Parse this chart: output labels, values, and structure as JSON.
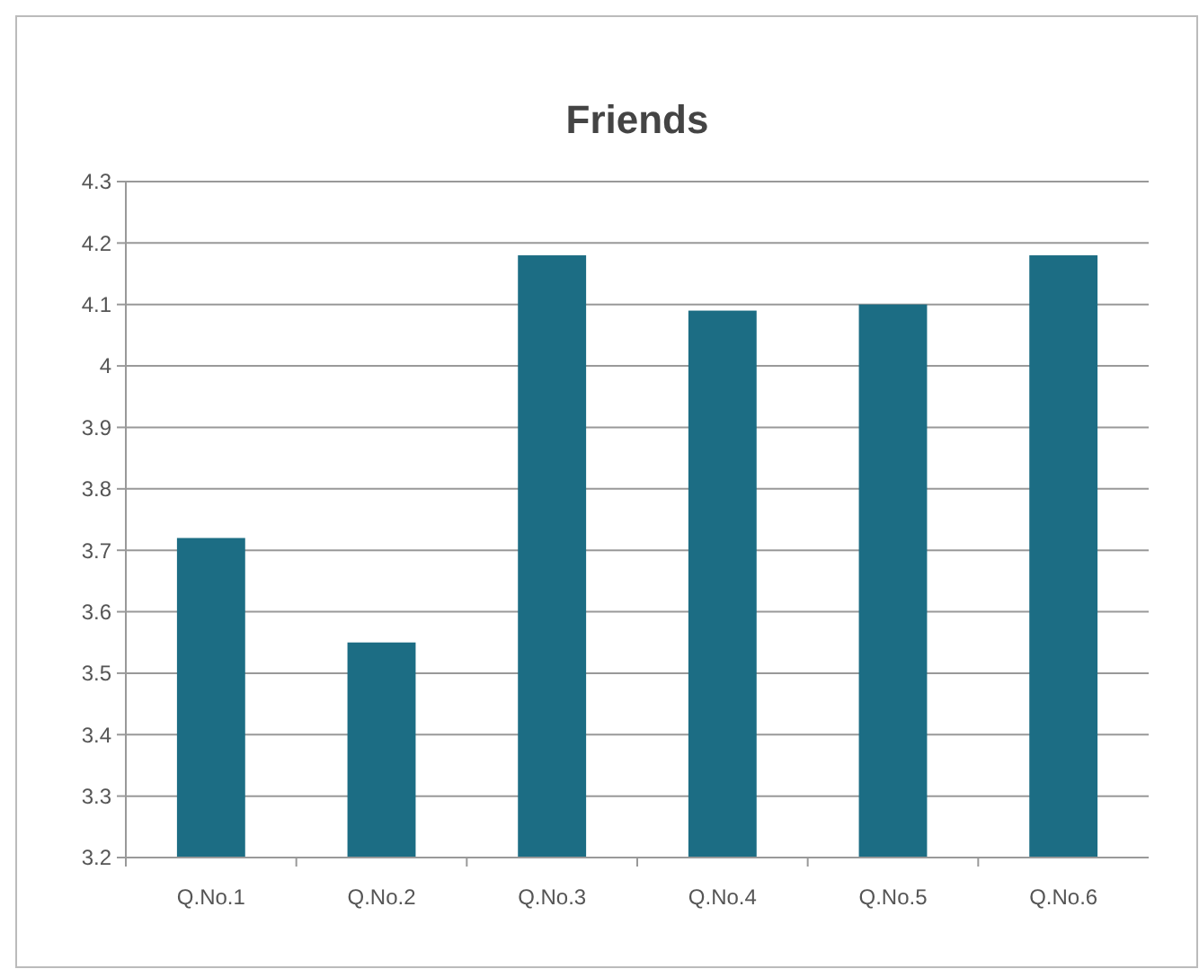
{
  "chart_data": {
    "type": "bar",
    "title": "Friends",
    "categories": [
      "Q.No.1",
      "Q.No.2",
      "Q.No.3",
      "Q.No.4",
      "Q.No.5",
      "Q.No.6"
    ],
    "values": [
      3.72,
      3.55,
      4.18,
      4.09,
      4.1,
      4.18
    ],
    "color": "#1c6d84",
    "ylim": [
      3.2,
      4.3
    ],
    "yticks": [
      3.2,
      3.3,
      3.4,
      3.5,
      3.6,
      3.7,
      3.8,
      3.9,
      4,
      4.1,
      4.2,
      4.3
    ],
    "grid": "y"
  }
}
